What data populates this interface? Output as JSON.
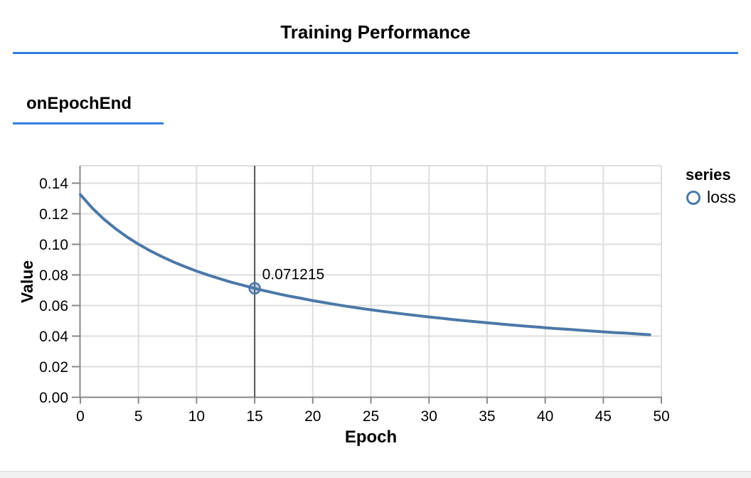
{
  "page": {
    "title": "Training Performance",
    "section_label": "onEpochEnd",
    "accent_color": "#357edd"
  },
  "chart_data": {
    "type": "line",
    "title": "Training Performance",
    "subtitle": "onEpochEnd",
    "xlabel": "Epoch",
    "ylabel": "Value",
    "xlim": [
      0,
      50
    ],
    "ylim": [
      0,
      0.15
    ],
    "grid": true,
    "x_ticks": [
      0,
      5,
      10,
      15,
      20,
      25,
      30,
      35,
      40,
      45,
      50
    ],
    "x_tick_labels": [
      "0",
      "5",
      "10",
      "15",
      "20",
      "25",
      "30",
      "35",
      "40",
      "45",
      "50"
    ],
    "y_ticks": [
      0.0,
      0.02,
      0.04,
      0.06,
      0.08,
      0.1,
      0.12,
      0.14
    ],
    "y_tick_labels": [
      "0.00",
      "0.02",
      "0.04",
      "0.06",
      "0.08",
      "0.10",
      "0.12",
      "0.14"
    ],
    "legend": {
      "title": "series",
      "position": "right",
      "entries": [
        {
          "label": "loss",
          "color": "#4c78a8",
          "symbol": "open-circle"
        }
      ]
    },
    "series": [
      {
        "name": "loss",
        "color": "#4c78a8",
        "x": [
          0,
          1,
          2,
          3,
          4,
          5,
          6,
          7,
          8,
          9,
          10,
          11,
          12,
          13,
          14,
          15,
          16,
          17,
          18,
          19,
          20,
          21,
          22,
          23,
          24,
          25,
          26,
          27,
          28,
          29,
          30,
          31,
          32,
          33,
          34,
          35,
          36,
          37,
          38,
          39,
          40,
          41,
          42,
          43,
          44,
          45,
          46,
          47,
          48,
          49
        ],
        "values": [
          0.1325,
          0.1239,
          0.1166,
          0.1104,
          0.1049,
          0.1001,
          0.0958,
          0.092,
          0.0885,
          0.0854,
          0.0825,
          0.0799,
          0.0775,
          0.0752,
          0.0732,
          0.071215,
          0.0694,
          0.0677,
          0.0661,
          0.0647,
          0.0632,
          0.0619,
          0.0606,
          0.0594,
          0.0583,
          0.0572,
          0.0562,
          0.0552,
          0.0543,
          0.0534,
          0.0525,
          0.0517,
          0.0509,
          0.0501,
          0.0494,
          0.0487,
          0.048,
          0.0473,
          0.0467,
          0.0461,
          0.0455,
          0.0449,
          0.0444,
          0.0438,
          0.0433,
          0.0428,
          0.0423,
          0.0419,
          0.0414,
          0.0409
        ]
      }
    ],
    "highlight": {
      "x": 15,
      "value": 0.071215,
      "label": "0.071215",
      "rule_color": "#555555"
    },
    "colors": {
      "gridline": "#dddddd",
      "axis": "#888888",
      "text": "#000000"
    }
  }
}
